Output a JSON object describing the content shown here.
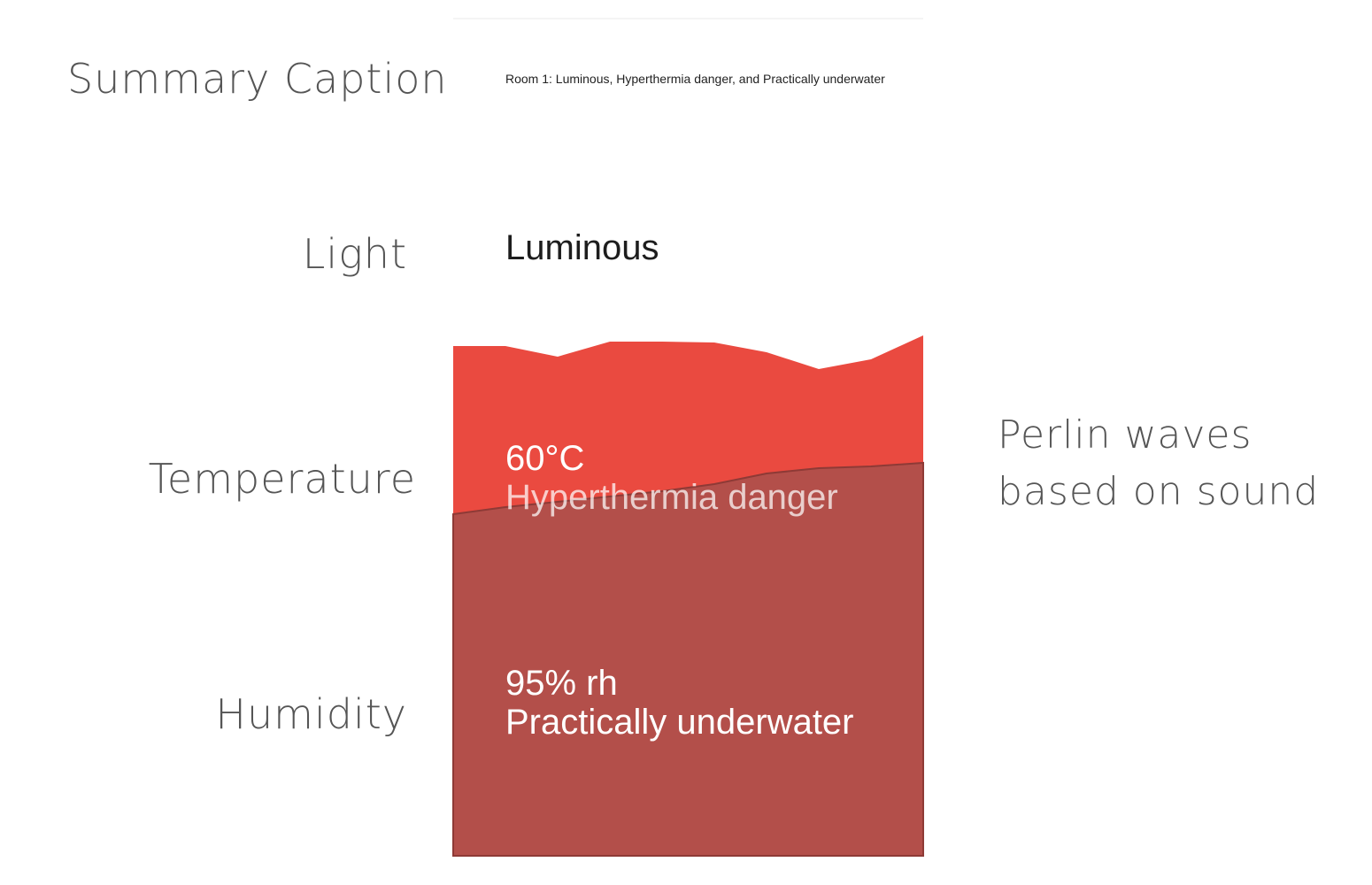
{
  "labels": {
    "summary": "Summary Caption",
    "light": "Light",
    "temperature": "Temperature",
    "humidity": "Humidity"
  },
  "annotation": {
    "line1": "Perlin waves",
    "line2": "based on sound"
  },
  "panel": {
    "caption": "Room 1: Luminous, Hyperthermia danger, and Practically underwater",
    "light_value": "Luminous",
    "temperature_value": "60°C",
    "temperature_desc": "Hyperthermia danger",
    "humidity_value": "95% rh",
    "humidity_desc": "Practically underwater"
  },
  "colors": {
    "temperature_wave": "#ea4a40",
    "humidity_wave": "#b34f4a",
    "humidity_edge": "#8e3a36",
    "label_text": "#555555"
  }
}
